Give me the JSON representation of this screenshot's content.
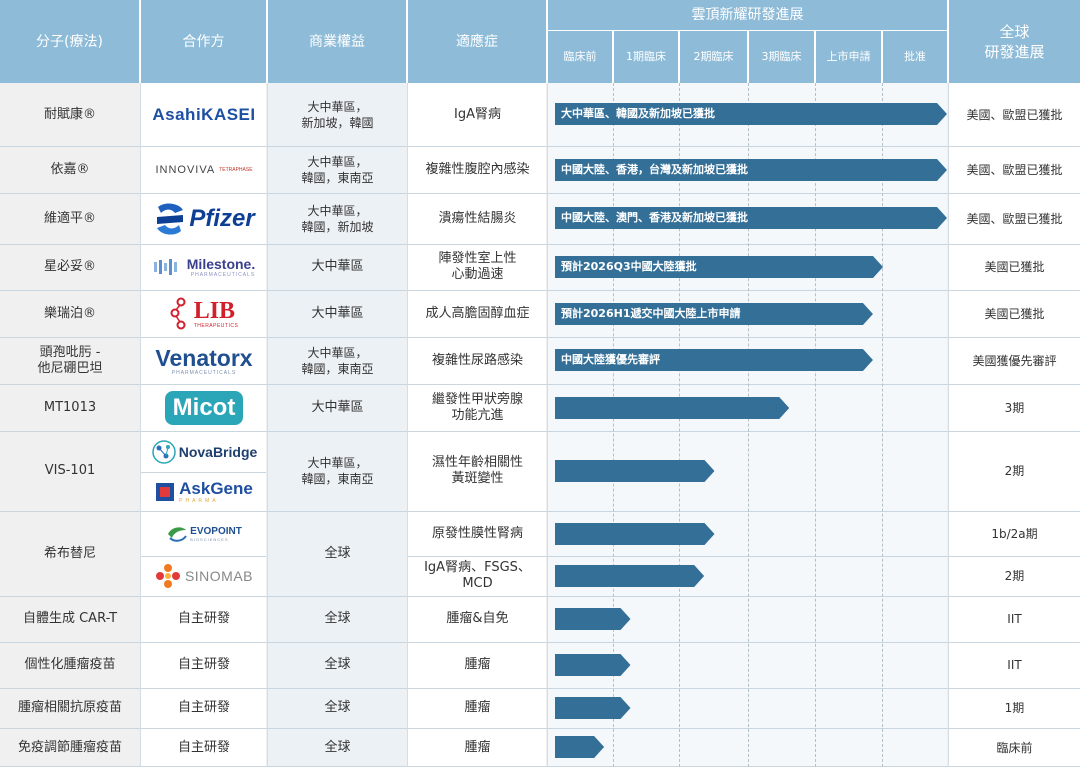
{
  "header": {
    "molecule": "分子(療法)",
    "partner": "合作方",
    "rights": "商業權益",
    "indication": "適應症",
    "progress_title": "雲頂新耀研發進展",
    "global": "全球\n研發進展",
    "stages": [
      "臨床前",
      "1期臨床",
      "2期臨床",
      "3期臨床",
      "上市申請",
      "批准"
    ]
  },
  "colors": {
    "header_bg": "#8dbbd8",
    "arrow": "#336f97",
    "row_alt": "#f0f0f0",
    "row_main": "#ffffff",
    "band": "#eaf3f9"
  },
  "chart_data": {
    "type": "table",
    "stage_axis": [
      "臨床前",
      "1期臨床",
      "2期臨床",
      "3期臨床",
      "上市申請",
      "批准"
    ],
    "rows": [
      {
        "molecule": "耐賦康®",
        "partner_logo": "AsahiKASEI",
        "partner_icon": "asahi-kasei-logo-icon",
        "rights": "大中華區，\n新加坡，韓國",
        "indication": "IgA腎病",
        "stage_end": 6.0,
        "label": "大中華區、韓國及新加坡已獲批",
        "global": "美國、歐盟已獲批"
      },
      {
        "molecule": "依嘉®",
        "partner_logo": "INNOVIVA",
        "partner_logo_sub": "TETRAPHASE",
        "partner_icon": "innoviva-logo-icon",
        "rights": "大中華區，\n韓國，東南亞",
        "indication": "複雜性腹腔內感染",
        "stage_end": 6.0,
        "label": "中國大陸、香港，台灣及新加坡已獲批",
        "global": "美國、歐盟已獲批"
      },
      {
        "molecule": "維適平®",
        "partner_logo": "Pfizer",
        "partner_icon": "pfizer-logo-icon",
        "rights": "大中華區，\n韓國，新加坡",
        "indication": "潰瘍性結腸炎",
        "stage_end": 6.0,
        "label": "中國大陸、澳門、香港及新加坡已獲批",
        "global": "美國、歐盟已獲批"
      },
      {
        "molecule": "星必妥®",
        "partner_logo": "Milestone.",
        "partner_logo_sub": "PHARMACEUTICALS",
        "partner_icon": "milestone-logo-icon",
        "rights": "大中華區",
        "indication": "陣發性室上性\n心動過速",
        "stage_end": 5.0,
        "label": "預計2026Q3中國大陸獲批",
        "global": "美國已獲批"
      },
      {
        "molecule": "樂瑞泊®",
        "partner_logo": "LIB",
        "partner_logo_sub": "THERAPEUTICS",
        "partner_icon": "lib-logo-icon",
        "rights": "大中華區",
        "indication": "成人高膽固醇血症",
        "stage_end": 4.85,
        "label": "預計2026H1遞交中國大陸上市申請",
        "global": "美國已獲批"
      },
      {
        "molecule": "頭孢吡肟 -\n他尼硼巴坦",
        "partner_logo": "Venatorx",
        "partner_logo_sub": "PHARMACEUTICALS",
        "partner_icon": "venatorx-logo-icon",
        "rights": "大中華區，\n韓國，東南亞",
        "indication": "複雜性尿路感染",
        "stage_end": 4.85,
        "label": "中國大陸獲優先審評",
        "global": "美國獲優先審評"
      },
      {
        "molecule": "MT1013",
        "partner_logo": "Micot",
        "partner_icon": "micot-logo-icon",
        "rights": "大中華區",
        "indication": "繼發性甲狀旁腺\n功能亢進",
        "stage_end": 3.6,
        "label": "",
        "global": "3期"
      },
      {
        "molecule": "VIS-101",
        "partner_logo": "NovaBridge",
        "partner_logo_2": "AskGene",
        "partner_logo_2_sub": "PHARMA",
        "partner_icon": "novabridge-logo-icon",
        "partner_icon_2": "askgene-logo-icon",
        "rights": "大中華區，\n韓國，東南亞",
        "indication": "濕性年齡相關性\n黃斑變性",
        "stage_end": 2.5,
        "label": "",
        "global": "2期"
      },
      {
        "molecule": "希布替尼",
        "partner_logo": "EVOPOINT",
        "partner_logo_sub": "BIOSCIENCES",
        "partner_icon": "evopoint-logo-icon",
        "rights": "全球",
        "indication": "原發性膜性腎病",
        "stage_end": 2.5,
        "label": "",
        "global": "1b/2a期"
      },
      {
        "molecule": "",
        "partner_logo": "SINOMAB",
        "partner_icon": "sinomab-logo-icon",
        "rights": "",
        "indication": "IgA腎病、FSGS、\nMCD",
        "stage_end": 2.35,
        "label": "",
        "global": "2期"
      },
      {
        "molecule": "自體生成 CAR-T",
        "partner": "自主研發",
        "rights": "全球",
        "indication": "腫瘤&自免",
        "stage_end": 1.25,
        "label": "",
        "global": "IIT"
      },
      {
        "molecule": "個性化腫瘤疫苗",
        "partner": "自主研發",
        "rights": "全球",
        "indication": "腫瘤",
        "stage_end": 1.25,
        "label": "",
        "global": "IIT"
      },
      {
        "molecule": "腫瘤相關抗原疫苗",
        "partner": "自主研發",
        "rights": "全球",
        "indication": "腫瘤",
        "stage_end": 1.25,
        "label": "",
        "global": "1期"
      },
      {
        "molecule": "免疫調節腫瘤疫苗",
        "partner": "自主研發",
        "rights": "全球",
        "indication": "腫瘤",
        "stage_end": 0.85,
        "label": "",
        "global": "臨床前"
      }
    ]
  }
}
